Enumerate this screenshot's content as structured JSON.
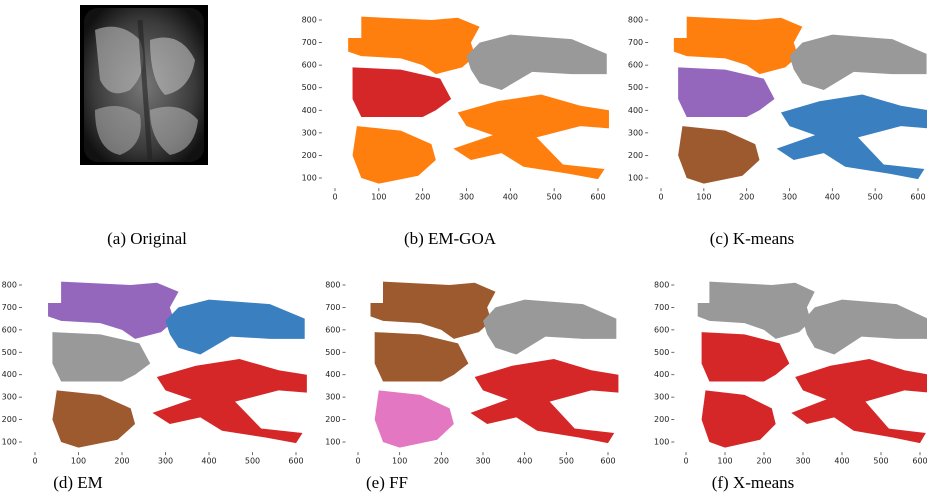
{
  "figure": {
    "panels": [
      {
        "caption": "(a) Original"
      },
      {
        "caption": "(b) EM-GOA",
        "xticks": [
          0,
          100,
          200,
          300,
          400,
          500,
          600
        ],
        "yticks": [
          100,
          200,
          300,
          400,
          500,
          600,
          700,
          800
        ]
      },
      {
        "caption": "(c) K-means",
        "xticks": [
          0,
          100,
          200,
          300,
          400,
          500,
          600
        ],
        "yticks": [
          100,
          200,
          300,
          400,
          500,
          600,
          700,
          800
        ]
      },
      {
        "caption": "(d) EM",
        "xticks": [
          0,
          100,
          200,
          300,
          400,
          500,
          600
        ],
        "yticks": [
          100,
          200,
          300,
          400,
          500,
          600,
          700,
          800
        ]
      },
      {
        "caption": "(e) FF",
        "xticks": [
          0,
          100,
          200,
          300,
          400,
          500,
          600
        ],
        "yticks": [
          100,
          200,
          300,
          400,
          500,
          600,
          700,
          800
        ]
      },
      {
        "caption": "(f) X-means",
        "xticks": [
          0,
          100,
          200,
          300,
          400,
          500,
          600
        ],
        "yticks": [
          100,
          200,
          300,
          400,
          500,
          600,
          700,
          800
        ]
      }
    ]
  }
}
